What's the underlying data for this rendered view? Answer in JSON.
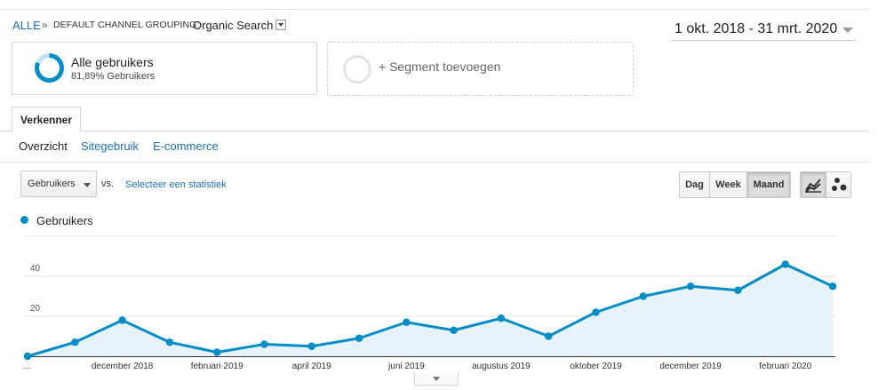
{
  "breadcrumb": {
    "all": "ALLE",
    "separator": "»",
    "label": "DEFAULT CHANNEL GROUPING:",
    "value": "Organic Search"
  },
  "date_range": "1 okt. 2018 - 31 mrt. 2020",
  "segments": {
    "active": {
      "title": "Alle gebruikers",
      "subtitle": "81,89% Gebruikers",
      "share": 0.8189
    },
    "add_label": "+ Segment toevoegen"
  },
  "tabs": {
    "explorer": "Verkenner"
  },
  "subtabs": [
    "Overzicht",
    "Sitegebruik",
    "E-commerce"
  ],
  "metric_select": {
    "value": "Gebruikers",
    "vs": "vs.",
    "select_stat": "Selecteer een statistiek"
  },
  "period_buttons": [
    "Dag",
    "Week",
    "Maand"
  ],
  "period_active": "Maand",
  "chart_view_icons": [
    "line-chart-icon",
    "motion-chart-icon"
  ],
  "colors": {
    "accent": "#058dc7",
    "area": "#e6f3fa",
    "link": "#1c6fb5"
  },
  "chart_data": {
    "type": "area",
    "title": "",
    "legend": "Gebruikers",
    "xlabel": "",
    "ylabel": "",
    "ylim": [
      0,
      60
    ],
    "y_ticks": [
      20,
      40,
      60
    ],
    "x_tick_labels": [
      "…",
      "december 2018",
      "februari 2019",
      "april 2019",
      "juni 2019",
      "augustus 2019",
      "oktober 2019",
      "december 2019",
      "februari 2020"
    ],
    "series": [
      {
        "name": "Gebruikers",
        "x": [
          "okt. 2018",
          "nov. 2018",
          "dec. 2018",
          "jan. 2019",
          "feb. 2019",
          "mrt. 2019",
          "apr. 2019",
          "mei 2019",
          "jun. 2019",
          "jul. 2019",
          "aug. 2019",
          "sep. 2019",
          "okt. 2019",
          "nov. 2019",
          "dec. 2019",
          "jan. 2020",
          "feb. 2020",
          "mrt. 2020"
        ],
        "values": [
          0,
          7,
          18,
          7,
          2,
          6,
          5,
          9,
          17,
          13,
          19,
          10,
          22,
          30,
          35,
          33,
          46,
          35
        ]
      }
    ]
  }
}
